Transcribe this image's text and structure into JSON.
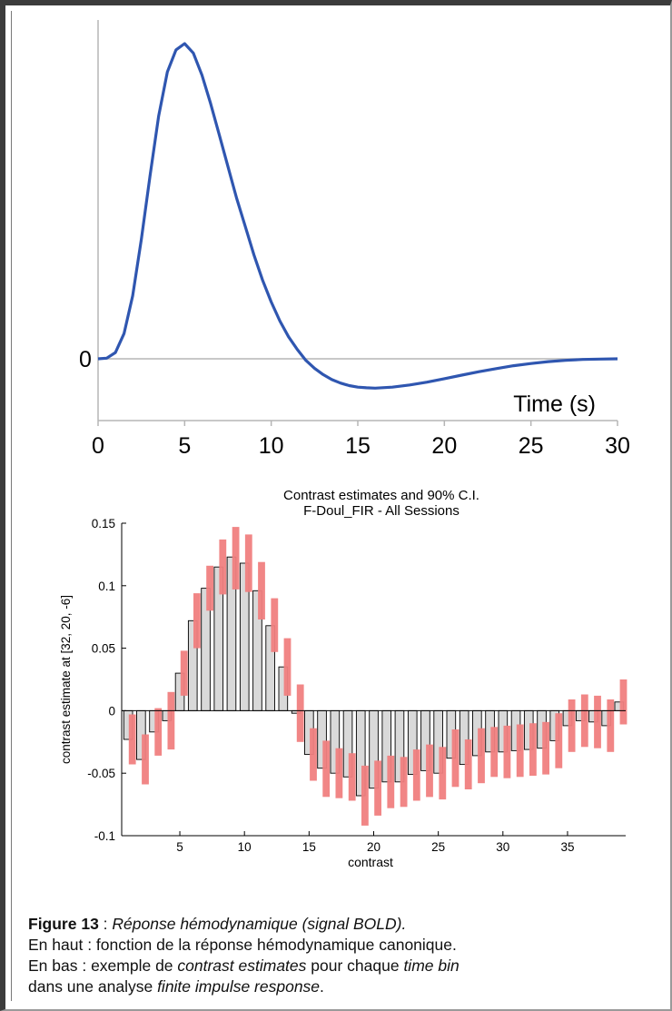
{
  "chart_data": [
    {
      "type": "line",
      "title": "",
      "xlabel": "Time (s)",
      "ylabel": "",
      "xlim": [
        0,
        30
      ],
      "x_ticks": [
        "0",
        "5",
        "10",
        "15",
        "20",
        "25",
        "30"
      ],
      "y_ticks": [
        "0"
      ],
      "grid": false,
      "line_color": "#2f56b0",
      "series": [
        {
          "x": [
            0,
            0.5,
            1,
            1.5,
            2,
            2.5,
            3,
            3.5,
            4,
            4.5,
            5,
            5.5,
            6,
            6.5,
            7,
            7.5,
            8,
            8.5,
            9,
            9.5,
            10,
            10.5,
            11,
            11.5,
            12,
            12.5,
            13,
            13.5,
            14,
            14.5,
            15,
            15.5,
            16,
            17,
            18,
            19,
            20,
            21,
            22,
            23,
            24,
            25,
            26,
            27,
            28,
            29,
            30
          ],
          "y": [
            0,
            0.002,
            0.02,
            0.08,
            0.2,
            0.38,
            0.58,
            0.77,
            0.91,
            0.98,
            1.0,
            0.97,
            0.9,
            0.81,
            0.71,
            0.61,
            0.51,
            0.42,
            0.33,
            0.25,
            0.18,
            0.12,
            0.07,
            0.03,
            -0.005,
            -0.03,
            -0.05,
            -0.066,
            -0.077,
            -0.085,
            -0.09,
            -0.092,
            -0.093,
            -0.09,
            -0.083,
            -0.074,
            -0.063,
            -0.052,
            -0.041,
            -0.031,
            -0.022,
            -0.015,
            -0.009,
            -0.005,
            -0.002,
            -0.001,
            0
          ]
        }
      ]
    },
    {
      "type": "bar",
      "title": "Contrast estimates and 90% C.I.",
      "subtitle": "F-Doul_FIR - All Sessions",
      "xlabel": "contrast",
      "ylabel": "contrast estimate at [32, 20, -6]",
      "xlim": [
        0.5,
        39.5
      ],
      "ylim": [
        -0.1,
        0.15
      ],
      "x_ticks": [
        5,
        10,
        15,
        20,
        25,
        30,
        35
      ],
      "y_ticks": [
        "-0.1",
        "-0.05",
        "0",
        "0.05",
        "0.1",
        "0.15"
      ],
      "grid": false,
      "bar_color": "#d9d9d9",
      "ci_color": "#f08080",
      "categories": [
        1,
        2,
        3,
        4,
        5,
        6,
        7,
        8,
        9,
        10,
        11,
        12,
        13,
        14,
        15,
        16,
        17,
        18,
        19,
        20,
        21,
        22,
        23,
        24,
        25,
        26,
        27,
        28,
        29,
        30,
        31,
        32,
        33,
        34,
        35,
        36,
        37,
        38,
        39
      ],
      "series": [
        {
          "values": [
            -0.023,
            -0.039,
            -0.017,
            -0.008,
            0.03,
            0.072,
            0.098,
            0.115,
            0.123,
            0.118,
            0.096,
            0.068,
            0.035,
            -0.002,
            -0.035,
            -0.046,
            -0.05,
            -0.053,
            -0.068,
            -0.062,
            -0.057,
            -0.057,
            -0.051,
            -0.048,
            -0.05,
            -0.038,
            -0.043,
            -0.036,
            -0.033,
            -0.033,
            -0.032,
            -0.031,
            -0.03,
            -0.024,
            -0.012,
            -0.008,
            -0.009,
            -0.012,
            0.007
          ],
          "ci_low": [
            -0.043,
            -0.059,
            -0.036,
            -0.031,
            0.012,
            0.05,
            0.08,
            0.093,
            0.097,
            0.095,
            0.073,
            0.047,
            0.012,
            -0.025,
            -0.056,
            -0.069,
            -0.07,
            -0.072,
            -0.092,
            -0.084,
            -0.078,
            -0.077,
            -0.072,
            -0.069,
            -0.071,
            -0.061,
            -0.063,
            -0.058,
            -0.053,
            -0.054,
            -0.053,
            -0.052,
            -0.051,
            -0.046,
            -0.033,
            -0.029,
            -0.03,
            -0.033,
            -0.011
          ],
          "ci_high": [
            -0.003,
            -0.019,
            0.002,
            0.015,
            0.048,
            0.094,
            0.116,
            0.137,
            0.147,
            0.141,
            0.119,
            0.09,
            0.058,
            0.021,
            -0.014,
            -0.024,
            -0.03,
            -0.034,
            -0.044,
            -0.04,
            -0.036,
            -0.037,
            -0.031,
            -0.027,
            -0.029,
            -0.015,
            -0.023,
            -0.014,
            -0.013,
            -0.012,
            -0.011,
            -0.01,
            -0.009,
            -0.002,
            0.009,
            0.013,
            0.012,
            0.009,
            0.025
          ]
        }
      ]
    }
  ],
  "caption": {
    "label": "Figure 13",
    "separator": " : ",
    "title": "Réponse hémodynamique (signal BOLD).",
    "line2": "En haut : fonction de la réponse hémodynamique canonique.",
    "line3_a": "En bas : exemple de ",
    "line3_b": "contrast estimates",
    "line3_c": " pour chaque ",
    "line3_d": "time bin",
    "line4_a": "dans une analyse ",
    "line4_b": "finite impulse response",
    "line4_c": "."
  }
}
